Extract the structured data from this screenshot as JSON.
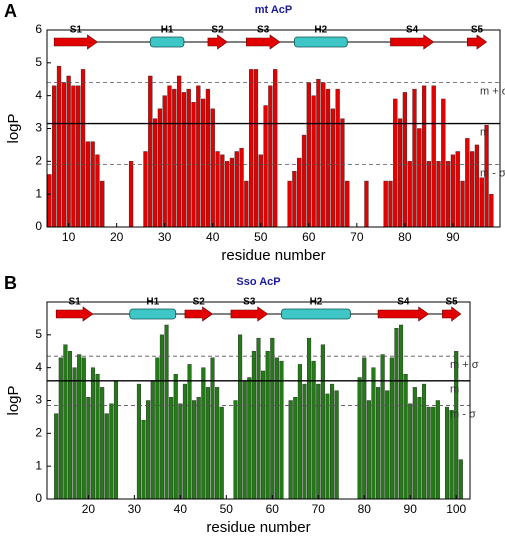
{
  "chart_data": [
    {
      "type": "bar",
      "panel": "A",
      "title": "mt AcP",
      "x_label": "residue number",
      "y_label": "logP",
      "color": "#e30000",
      "xlim": [
        5.5,
        99.8
      ],
      "ylim": [
        0,
        6
      ],
      "xticks": [
        10,
        20,
        30,
        40,
        50,
        60,
        70,
        80,
        90
      ],
      "yticks": [
        0,
        1,
        2,
        3,
        4,
        5,
        6
      ],
      "x": [
        6,
        7,
        8,
        9,
        10,
        11,
        12,
        13,
        14,
        15,
        16,
        17,
        18,
        19,
        20,
        21,
        22,
        23,
        24,
        25,
        26,
        27,
        28,
        29,
        30,
        31,
        32,
        33,
        34,
        35,
        36,
        37,
        38,
        39,
        40,
        41,
        42,
        43,
        44,
        45,
        46,
        47,
        48,
        49,
        50,
        51,
        52,
        53,
        54,
        55,
        56,
        57,
        58,
        59,
        60,
        61,
        62,
        63,
        64,
        65,
        66,
        67,
        68,
        69,
        70,
        71,
        72,
        73,
        74,
        75,
        76,
        77,
        78,
        79,
        80,
        81,
        82,
        83,
        84,
        85,
        86,
        87,
        88,
        89,
        90,
        91,
        92,
        93,
        94,
        95,
        96,
        97,
        98
      ],
      "values": [
        1.6,
        4.3,
        4.9,
        4.4,
        4.6,
        4.3,
        4.3,
        4.8,
        2.6,
        2.6,
        2.2,
        1.4,
        null,
        null,
        null,
        null,
        null,
        2.0,
        null,
        null,
        2.3,
        4.6,
        3.3,
        3.6,
        4.0,
        4.3,
        4.2,
        4.6,
        4.1,
        4.2,
        3.8,
        4.3,
        3.9,
        4.2,
        3.6,
        2.3,
        2.2,
        2.0,
        2.1,
        2.3,
        2.4,
        1.4,
        4.8,
        4.8,
        2.2,
        3.7,
        4.3,
        4.8,
        null,
        null,
        1.4,
        1.7,
        2.1,
        2.8,
        4.4,
        4.0,
        4.5,
        4.4,
        4.2,
        3.6,
        4.2,
        3.3,
        1.4,
        null,
        null,
        null,
        1.4,
        null,
        null,
        null,
        1.4,
        1.4,
        3.9,
        3.3,
        4.1,
        2.0,
        4.2,
        3.0,
        4.3,
        2.0,
        4.3,
        2.0,
        3.9,
        2.0,
        2.2,
        2.3,
        1.4,
        2.7,
        2.3,
        2.5,
        1.5,
        3.1,
        1.0
      ],
      "reference_lines": [
        {
          "label": "m + σ",
          "value": 4.4,
          "style": "dashed"
        },
        {
          "label": "m",
          "value": 3.15,
          "style": "solid"
        },
        {
          "label": "m - σ",
          "value": 1.9,
          "style": "dashed"
        }
      ],
      "segments": [
        {
          "name": "S1",
          "kind": "strand",
          "start": 7,
          "end": 16
        },
        {
          "name": "H1",
          "kind": "helix",
          "start": 27,
          "end": 34
        },
        {
          "name": "S2",
          "kind": "strand",
          "start": 39,
          "end": 43
        },
        {
          "name": "S3",
          "kind": "strand",
          "start": 47,
          "end": 54
        },
        {
          "name": "H2",
          "kind": "helix",
          "start": 57,
          "end": 68
        },
        {
          "name": "S4",
          "kind": "strand",
          "start": 77,
          "end": 86
        },
        {
          "name": "S5",
          "kind": "strand",
          "start": 93,
          "end": 97
        }
      ]
    },
    {
      "type": "bar",
      "panel": "B",
      "title": "Sso AcP",
      "x_label": "residue number",
      "y_label": "logP",
      "color": "#237a17",
      "xlim": [
        11,
        103
      ],
      "ylim": [
        0,
        6
      ],
      "xticks": [
        20,
        30,
        40,
        50,
        60,
        70,
        80,
        90,
        100
      ],
      "yticks": [
        0,
        1,
        2,
        3,
        4,
        5
      ],
      "x": [
        13,
        14,
        15,
        16,
        17,
        18,
        19,
        20,
        21,
        22,
        23,
        24,
        25,
        26,
        27,
        28,
        29,
        30,
        31,
        32,
        33,
        34,
        35,
        36,
        37,
        38,
        39,
        40,
        41,
        42,
        43,
        44,
        45,
        46,
        47,
        48,
        49,
        50,
        51,
        52,
        53,
        54,
        55,
        56,
        57,
        58,
        59,
        60,
        61,
        62,
        63,
        64,
        65,
        66,
        67,
        68,
        69,
        70,
        71,
        72,
        73,
        74,
        75,
        76,
        77,
        78,
        79,
        80,
        81,
        82,
        83,
        84,
        85,
        86,
        87,
        88,
        89,
        90,
        91,
        92,
        93,
        94,
        95,
        96,
        97,
        98,
        99,
        100,
        101
      ],
      "values": [
        2.6,
        4.3,
        4.7,
        4.5,
        4.0,
        4.4,
        4.3,
        3.1,
        4.0,
        3.8,
        3.4,
        2.6,
        2.9,
        3.6,
        null,
        null,
        null,
        null,
        3.5,
        2.4,
        3.0,
        3.6,
        4.3,
        5.0,
        5.3,
        3.1,
        3.8,
        2.9,
        3.5,
        4.1,
        3.0,
        3.1,
        4.0,
        3.4,
        4.3,
        3.4,
        2.8,
        null,
        null,
        3.0,
        5.0,
        3.6,
        3.7,
        4.5,
        4.9,
        3.9,
        4.5,
        4.9,
        4.3,
        4.2,
        null,
        3.0,
        3.1,
        4.1,
        3.5,
        4.9,
        4.2,
        3.5,
        4.7,
        3.2,
        3.5,
        3.3,
        null,
        null,
        null,
        null,
        3.7,
        4.3,
        3.0,
        4.0,
        3.4,
        4.4,
        3.3,
        4.3,
        5.2,
        5.3,
        3.8,
        2.9,
        3.4,
        3.1,
        3.5,
        2.8,
        2.8,
        3.0,
        null,
        2.8,
        2.7,
        4.5,
        1.2
      ],
      "reference_lines": [
        {
          "label": "m + σ",
          "value": 4.35,
          "style": "dashed"
        },
        {
          "label": "m",
          "value": 3.6,
          "style": "solid"
        },
        {
          "label": "m - σ",
          "value": 2.85,
          "style": "dashed"
        }
      ],
      "segments": [
        {
          "name": "S1",
          "kind": "strand",
          "start": 13,
          "end": 21
        },
        {
          "name": "H1",
          "kind": "helix",
          "start": 29,
          "end": 39
        },
        {
          "name": "S2",
          "kind": "strand",
          "start": 41,
          "end": 47
        },
        {
          "name": "S3",
          "kind": "strand",
          "start": 51,
          "end": 59
        },
        {
          "name": "H2",
          "kind": "helix",
          "start": 62,
          "end": 77
        },
        {
          "name": "S4",
          "kind": "strand",
          "start": 83,
          "end": 94
        },
        {
          "name": "S5",
          "kind": "strand",
          "start": 97,
          "end": 101
        }
      ]
    }
  ]
}
